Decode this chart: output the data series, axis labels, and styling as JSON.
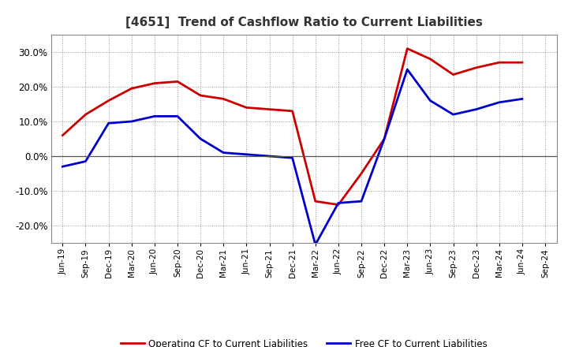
{
  "title": "[4651]  Trend of Cashflow Ratio to Current Liabilities",
  "x_labels": [
    "Jun-19",
    "Sep-19",
    "Dec-19",
    "Mar-20",
    "Jun-20",
    "Sep-20",
    "Dec-20",
    "Mar-21",
    "Jun-21",
    "Sep-21",
    "Dec-21",
    "Mar-22",
    "Jun-22",
    "Sep-22",
    "Dec-22",
    "Mar-23",
    "Jun-23",
    "Sep-23",
    "Dec-23",
    "Mar-24",
    "Jun-24",
    "Sep-24"
  ],
  "operating_cf": [
    6.0,
    12.0,
    16.0,
    19.5,
    21.0,
    21.5,
    17.5,
    16.5,
    14.0,
    13.5,
    13.0,
    -13.0,
    -14.0,
    -5.0,
    5.0,
    31.0,
    28.0,
    23.5,
    25.5,
    27.0,
    27.0,
    null
  ],
  "free_cf": [
    -3.0,
    -1.5,
    9.5,
    10.0,
    11.5,
    11.5,
    5.0,
    1.0,
    0.5,
    0.0,
    -0.5,
    -25.5,
    -13.5,
    -13.0,
    5.0,
    25.0,
    16.0,
    12.0,
    13.5,
    15.5,
    16.5,
    null
  ],
  "operating_color": "#cc0000",
  "free_color": "#0000cc",
  "ylim": [
    -25,
    35
  ],
  "yticks": [
    -20.0,
    -10.0,
    0.0,
    10.0,
    20.0,
    30.0
  ],
  "background_color": "#ffffff",
  "plot_bg_color": "#ffffff",
  "grid_color": "#999999",
  "title_fontsize": 11,
  "title_color": "#333333",
  "legend_labels": [
    "Operating CF to Current Liabilities",
    "Free CF to Current Liabilities"
  ]
}
